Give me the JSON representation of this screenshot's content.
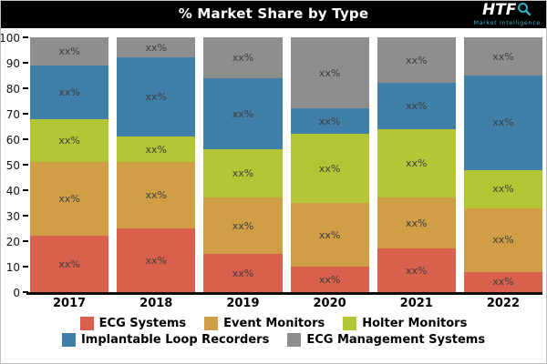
{
  "header": {
    "title": "% Market Share by Type",
    "logo": {
      "text": "HTF",
      "subtext": "Market Intelligence"
    }
  },
  "chart_data": {
    "type": "bar",
    "subtype": "stacked",
    "title": "% Market Share by Type",
    "categories": [
      "2017",
      "2018",
      "2019",
      "2020",
      "2021",
      "2022"
    ],
    "series": [
      {
        "name": "ECG Systems",
        "color": "#d9604c",
        "values": [
          22,
          25,
          15,
          10,
          17,
          8
        ]
      },
      {
        "name": "Event Monitors",
        "color": "#cf9e45",
        "values": [
          29,
          26,
          22,
          25,
          20,
          25
        ]
      },
      {
        "name": "Holter Monitors",
        "color": "#b4c636",
        "values": [
          17,
          10,
          19,
          27,
          27,
          15
        ]
      },
      {
        "name": "Implantable Loop Recorders",
        "color": "#3f7fa8",
        "values": [
          21,
          31,
          28,
          10,
          18,
          37
        ]
      },
      {
        "name": "ECG Management Systems",
        "color": "#8e8e8e",
        "values": [
          11,
          8,
          16,
          28,
          18,
          15
        ]
      }
    ],
    "segment_label": "xx%",
    "xlabel": "",
    "ylabel": "",
    "ylim": [
      0,
      100
    ],
    "yticks": [
      0,
      10,
      20,
      30,
      40,
      50,
      60,
      70,
      80,
      90,
      100
    ],
    "grid": false,
    "legend_position": "bottom"
  }
}
